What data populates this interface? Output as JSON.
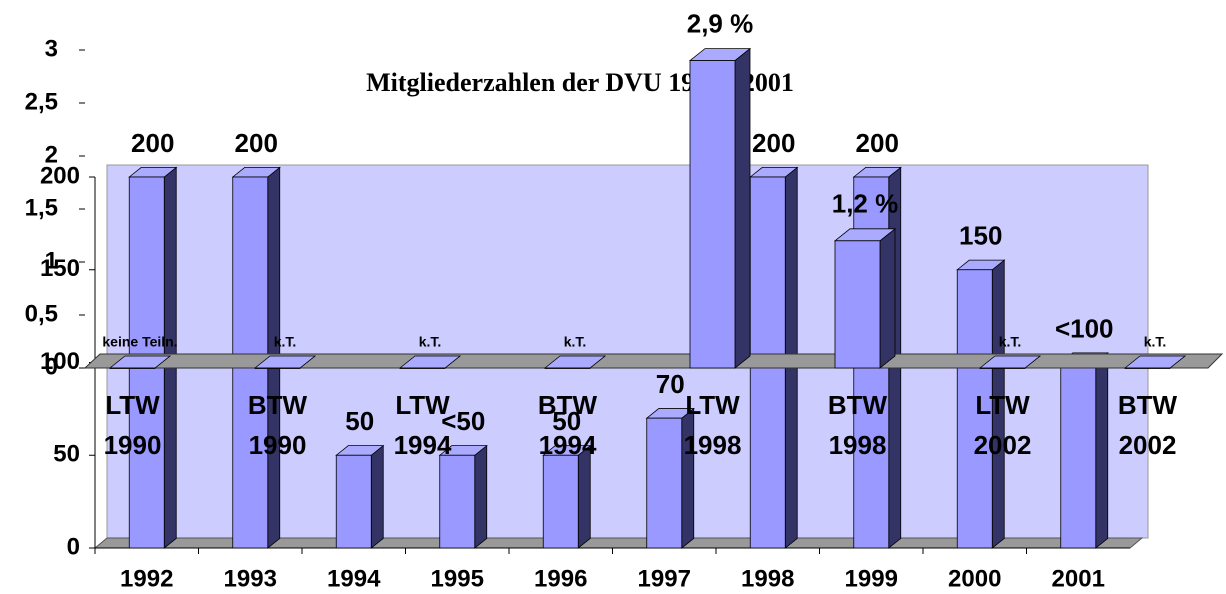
{
  "chart_data": [
    {
      "type": "bar3d",
      "title": "Mitgliederzahlen der DVU 1992 - 2001",
      "categories": [
        "1992",
        "1993",
        "1994",
        "1995",
        "1996",
        "1997",
        "1998",
        "1999",
        "2000",
        "2001"
      ],
      "values": [
        200,
        200,
        50,
        50,
        50,
        70,
        200,
        200,
        150,
        100
      ],
      "value_labels": [
        "200",
        "200",
        "50",
        "<50",
        "50",
        "70",
        "200",
        "200",
        "150",
        "<100"
      ],
      "color": "#9999ff",
      "ylim": [
        0,
        200
      ],
      "yticks": [
        0,
        50,
        100,
        150,
        200
      ]
    },
    {
      "type": "bar3d",
      "categories": [
        "LTW 1990",
        "BTW 1990",
        "LTW 1994",
        "BTW 1994",
        "LTW 1998",
        "BTW 1998",
        "LTW 2002",
        "BTW 2002"
      ],
      "values": [
        0,
        0,
        0,
        0,
        2.9,
        1.2,
        0,
        0
      ],
      "value_labels": [
        "keine Teiln.",
        "k.T.",
        "k.T.",
        "k.T.",
        "2,9 %",
        "1,2 %",
        "k.T.",
        "k.T."
      ],
      "color": "#9999ff",
      "ylim": [
        0,
        3
      ],
      "yticks": [
        0,
        {
          "value": 0.5,
          "label": "0,5"
        },
        1,
        {
          "value": 1.5,
          "label": "1,5"
        },
        2,
        {
          "value": 2.5,
          "label": "2,5"
        },
        3
      ]
    }
  ]
}
